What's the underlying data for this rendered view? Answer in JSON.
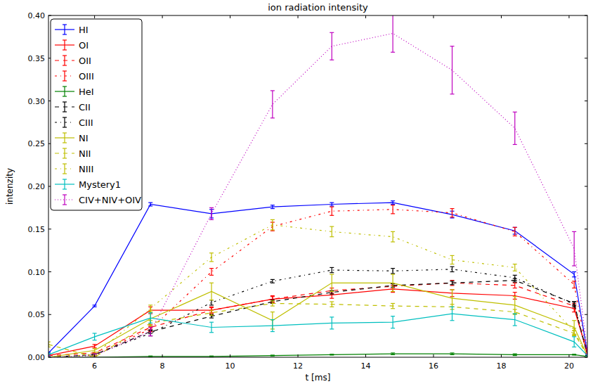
{
  "chart_data": {
    "type": "line",
    "title": "ion radiation intensity",
    "x_label": "t [ms]",
    "y_label": "intenzity",
    "x": [
      4.64,
      6.0,
      7.65,
      9.45,
      11.25,
      13.0,
      14.8,
      16.55,
      18.4,
      20.15,
      20.54
    ],
    "xlim": [
      4.64,
      20.54
    ],
    "xticks": [
      6,
      8,
      10,
      12,
      14,
      16,
      18,
      20
    ],
    "ylim": [
      0,
      0.4
    ],
    "yticks": [
      {
        "value": 0,
        "label": "0.00"
      },
      {
        "value": 0.05,
        "label": "0.05"
      },
      {
        "value": 0.1,
        "label": "0.10"
      },
      {
        "value": 0.15,
        "label": "0.15"
      },
      {
        "value": 0.2,
        "label": "0.20"
      },
      {
        "value": 0.25,
        "label": "0.25"
      },
      {
        "value": 0.3,
        "label": "0.30"
      },
      {
        "value": 0.35,
        "label": "0.35"
      },
      {
        "value": 0.4,
        "label": "0.40"
      }
    ],
    "grid": false,
    "legend": "upper left",
    "series": [
      {
        "name": "HI",
        "color": "#0000ff",
        "line_style": "solid",
        "values": [
          0.005,
          0.06,
          0.179,
          0.168,
          0.176,
          0.179,
          0.181,
          0.167,
          0.148,
          0.097,
          0.005
        ],
        "errors": [
          0.001,
          0.001,
          0.002,
          0.005,
          0.002,
          0.002,
          0.002,
          0.004,
          0.004,
          0.003,
          0.001
        ]
      },
      {
        "name": "OI",
        "color": "#ff0000",
        "line_style": "solid",
        "values": [
          0.002,
          0.013,
          0.055,
          0.055,
          0.068,
          0.073,
          0.08,
          0.075,
          0.072,
          0.057,
          0.005
        ],
        "errors": [
          0.001,
          0.002,
          0.004,
          0.004,
          0.004,
          0.004,
          0.004,
          0.004,
          0.004,
          0.004,
          0.001
        ]
      },
      {
        "name": "OII",
        "color": "#ff0000",
        "line_style": "dashed",
        "values": [
          0.002,
          0.005,
          0.035,
          0.055,
          0.068,
          0.078,
          0.083,
          0.087,
          0.084,
          0.06,
          0.003
        ],
        "errors": [
          0.001,
          0.001,
          0.003,
          0.003,
          0.003,
          0.003,
          0.003,
          0.003,
          0.003,
          0.003,
          0.001
        ]
      },
      {
        "name": "OIII",
        "color": "#ff0000",
        "line_style": "dashdot",
        "values": [
          0.0,
          0.003,
          0.033,
          0.1,
          0.153,
          0.171,
          0.173,
          0.169,
          0.147,
          0.085,
          0.003
        ],
        "errors": [
          0.001,
          0.001,
          0.003,
          0.004,
          0.005,
          0.005,
          0.005,
          0.005,
          0.005,
          0.004,
          0.001
        ]
      },
      {
        "name": "HeI",
        "color": "#008000",
        "line_style": "solid",
        "values": [
          0.0,
          0.0,
          0.001,
          0.001,
          0.002,
          0.003,
          0.004,
          0.004,
          0.003,
          0.003,
          0.001
        ],
        "errors": [
          0.0005,
          0.0005,
          0.0005,
          0.0005,
          0.0005,
          0.0005,
          0.001,
          0.001,
          0.001,
          0.0005,
          0.0005
        ]
      },
      {
        "name": "CII",
        "color": "#000000",
        "line_style": "dashed",
        "values": [
          0.0,
          0.003,
          0.03,
          0.048,
          0.065,
          0.076,
          0.084,
          0.087,
          0.09,
          0.063,
          0.003
        ],
        "errors": [
          0.001,
          0.001,
          0.002,
          0.002,
          0.002,
          0.002,
          0.002,
          0.002,
          0.002,
          0.002,
          0.001
        ]
      },
      {
        "name": "CIII",
        "color": "#000000",
        "line_style": "dashdot",
        "values": [
          0.0,
          0.003,
          0.028,
          0.064,
          0.089,
          0.102,
          0.101,
          0.103,
          0.093,
          0.062,
          0.003
        ],
        "errors": [
          0.001,
          0.001,
          0.003,
          0.003,
          0.002,
          0.003,
          0.003,
          0.003,
          0.003,
          0.003,
          0.001
        ]
      },
      {
        "name": "NI",
        "color": "#bfbf00",
        "line_style": "solid",
        "values": [
          0.0,
          0.008,
          0.045,
          0.077,
          0.043,
          0.087,
          0.087,
          0.069,
          0.061,
          0.035,
          0.002
        ],
        "errors": [
          0.001,
          0.002,
          0.01,
          0.01,
          0.01,
          0.01,
          0.01,
          0.01,
          0.01,
          0.008,
          0.001
        ]
      },
      {
        "name": "NII",
        "color": "#bfbf00",
        "line_style": "dashed",
        "values": [
          0.015,
          0.0,
          0.04,
          0.052,
          0.063,
          0.062,
          0.06,
          0.059,
          0.053,
          0.028,
          0.002
        ],
        "errors": [
          0.003,
          0.001,
          0.003,
          0.003,
          0.003,
          0.003,
          0.003,
          0.003,
          0.003,
          0.003,
          0.001
        ]
      },
      {
        "name": "NIII",
        "color": "#bfbf00",
        "line_style": "dashdot",
        "values": [
          0.0,
          0.003,
          0.057,
          0.117,
          0.155,
          0.147,
          0.141,
          0.114,
          0.105,
          0.03,
          0.002
        ],
        "errors": [
          0.001,
          0.001,
          0.004,
          0.005,
          0.006,
          0.006,
          0.006,
          0.005,
          0.004,
          0.004,
          0.001
        ]
      },
      {
        "name": "Mystery1",
        "color": "#00bfbf",
        "line_style": "solid",
        "values": [
          0.003,
          0.024,
          0.046,
          0.035,
          0.037,
          0.04,
          0.041,
          0.051,
          0.044,
          0.018,
          0.002
        ],
        "errors": [
          0.002,
          0.004,
          0.006,
          0.006,
          0.007,
          0.007,
          0.007,
          0.008,
          0.007,
          0.006,
          0.001
        ]
      },
      {
        "name": "CIV+NIV+OIV",
        "color": "#bf00bf",
        "line_style": "dotted",
        "values": [
          0.0,
          0.002,
          0.03,
          0.168,
          0.296,
          0.364,
          0.379,
          0.336,
          0.268,
          0.127,
          0.008
        ],
        "errors": [
          0.002,
          0.002,
          0.005,
          0.007,
          0.016,
          0.016,
          0.022,
          0.028,
          0.019,
          0.02,
          0.004
        ]
      }
    ]
  }
}
